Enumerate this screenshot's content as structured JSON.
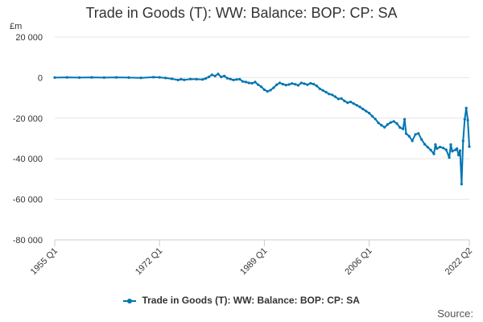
{
  "chart_data": {
    "type": "line",
    "title": "Trade in Goods (T): WW: Balance: BOP: CP: SA",
    "ylabel": "£m",
    "xlabel": "",
    "ylim": [
      -80000,
      20000
    ],
    "yticks": [
      {
        "value": 20000,
        "label": "20 000"
      },
      {
        "value": 0,
        "label": "0"
      },
      {
        "value": -20000,
        "label": "-20 000"
      },
      {
        "value": -40000,
        "label": "-40 000"
      },
      {
        "value": -60000,
        "label": "-60 000"
      },
      {
        "value": -80000,
        "label": "-80 000"
      }
    ],
    "xlim": [
      1955.0,
      2022.25
    ],
    "xticks": [
      {
        "value": 1955.0,
        "label": "1955 Q1"
      },
      {
        "value": 1972.0,
        "label": "1972 Q1"
      },
      {
        "value": 1989.0,
        "label": "1989 Q1"
      },
      {
        "value": 2006.0,
        "label": "2006 Q1"
      },
      {
        "value": 2022.25,
        "label": "2022 Q2"
      }
    ],
    "grid": true,
    "series": [
      {
        "name": "Trade in Goods (T): WW: Balance: BOP: CP: SA",
        "color": "#0075b0",
        "points": [
          [
            1955.0,
            0
          ],
          [
            1957.0,
            100
          ],
          [
            1959.0,
            0
          ],
          [
            1961.0,
            100
          ],
          [
            1963.0,
            0
          ],
          [
            1965.0,
            100
          ],
          [
            1967.0,
            0
          ],
          [
            1969.0,
            -100
          ],
          [
            1971.0,
            200
          ],
          [
            1972.0,
            100
          ],
          [
            1973.0,
            -200
          ],
          [
            1974.0,
            -600
          ],
          [
            1975.0,
            -1200
          ],
          [
            1975.5,
            -800
          ],
          [
            1976.0,
            -1100
          ],
          [
            1977.0,
            -700
          ],
          [
            1978.0,
            -800
          ],
          [
            1979.0,
            -900
          ],
          [
            1979.5,
            -400
          ],
          [
            1980.0,
            300
          ],
          [
            1980.5,
            1400
          ],
          [
            1981.0,
            800
          ],
          [
            1981.5,
            1800
          ],
          [
            1982.0,
            300
          ],
          [
            1982.5,
            800
          ],
          [
            1983.0,
            -300
          ],
          [
            1983.5,
            -700
          ],
          [
            1984.0,
            -1200
          ],
          [
            1984.5,
            -900
          ],
          [
            1985.0,
            -800
          ],
          [
            1985.5,
            -1900
          ],
          [
            1986.0,
            -2200
          ],
          [
            1986.5,
            -2600
          ],
          [
            1987.0,
            -2800
          ],
          [
            1987.5,
            -2200
          ],
          [
            1988.0,
            -3500
          ],
          [
            1988.5,
            -4500
          ],
          [
            1989.0,
            -6000
          ],
          [
            1989.5,
            -6800
          ],
          [
            1990.0,
            -6200
          ],
          [
            1990.5,
            -5000
          ],
          [
            1991.0,
            -3500
          ],
          [
            1991.5,
            -2600
          ],
          [
            1992.0,
            -3200
          ],
          [
            1992.5,
            -3700
          ],
          [
            1993.0,
            -3400
          ],
          [
            1993.5,
            -2900
          ],
          [
            1994.0,
            -3300
          ],
          [
            1994.5,
            -3800
          ],
          [
            1995.0,
            -2600
          ],
          [
            1995.5,
            -3000
          ],
          [
            1996.0,
            -3500
          ],
          [
            1996.5,
            -2800
          ],
          [
            1997.0,
            -3200
          ],
          [
            1997.5,
            -4100
          ],
          [
            1998.0,
            -5500
          ],
          [
            1998.5,
            -6300
          ],
          [
            1999.0,
            -7200
          ],
          [
            1999.5,
            -8100
          ],
          [
            2000.0,
            -8500
          ],
          [
            2000.5,
            -9400
          ],
          [
            2001.0,
            -10500
          ],
          [
            2001.5,
            -10300
          ],
          [
            2002.0,
            -11500
          ],
          [
            2002.5,
            -12400
          ],
          [
            2003.0,
            -12000
          ],
          [
            2003.5,
            -12800
          ],
          [
            2004.0,
            -13600
          ],
          [
            2004.5,
            -14500
          ],
          [
            2005.0,
            -15500
          ],
          [
            2005.5,
            -16500
          ],
          [
            2006.0,
            -17500
          ],
          [
            2006.5,
            -19000
          ],
          [
            2007.0,
            -20400
          ],
          [
            2007.5,
            -22300
          ],
          [
            2008.0,
            -23500
          ],
          [
            2008.5,
            -24500
          ],
          [
            2009.0,
            -23100
          ],
          [
            2009.5,
            -22100
          ],
          [
            2010.0,
            -21600
          ],
          [
            2010.5,
            -22600
          ],
          [
            2011.0,
            -24600
          ],
          [
            2011.5,
            -25300
          ],
          [
            2011.75,
            -20500
          ],
          [
            2012.0,
            -27600
          ],
          [
            2012.5,
            -28900
          ],
          [
            2013.0,
            -31200
          ],
          [
            2013.5,
            -28000
          ],
          [
            2014.0,
            -27500
          ],
          [
            2014.5,
            -30500
          ],
          [
            2015.0,
            -32800
          ],
          [
            2015.5,
            -34300
          ],
          [
            2016.0,
            -35700
          ],
          [
            2016.5,
            -37600
          ],
          [
            2016.75,
            -33000
          ],
          [
            2017.0,
            -35000
          ],
          [
            2017.5,
            -34200
          ],
          [
            2018.0,
            -34700
          ],
          [
            2018.5,
            -35600
          ],
          [
            2019.0,
            -39400
          ],
          [
            2019.25,
            -33000
          ],
          [
            2019.5,
            -36300
          ],
          [
            2020.0,
            -35600
          ],
          [
            2020.25,
            -35000
          ],
          [
            2020.5,
            -38200
          ],
          [
            2020.75,
            -36000
          ],
          [
            2021.0,
            -52500
          ],
          [
            2021.25,
            -31200
          ],
          [
            2021.5,
            -20500
          ],
          [
            2021.75,
            -15000
          ],
          [
            2022.0,
            -21000
          ],
          [
            2022.25,
            -34000
          ]
        ]
      }
    ],
    "legend": {
      "position": "bottom-center",
      "label": "Trade in Goods (T): WW: Balance: BOP: CP: SA"
    },
    "source_label": "Source:"
  }
}
